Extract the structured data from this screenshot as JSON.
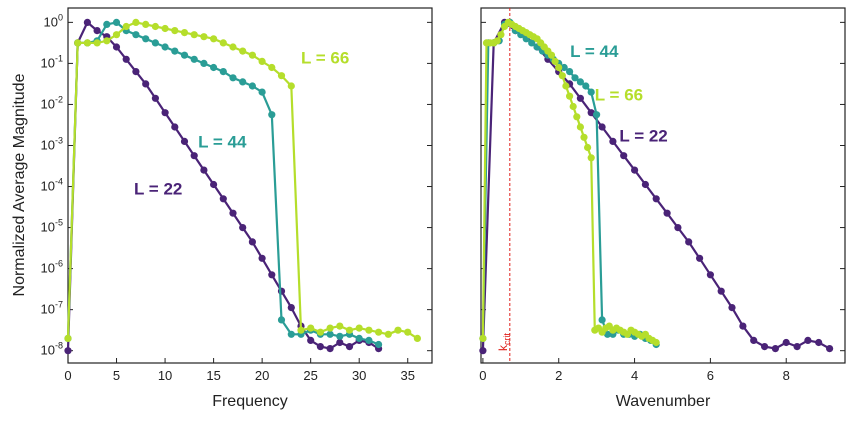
{
  "chart_data": [
    {
      "type": "line",
      "panel": "left",
      "xlabel": "Frequency",
      "ylabel": "Normalized Average Magnitude",
      "xlim": [
        0,
        37.5
      ],
      "ylim_log10": [
        -8.3,
        0.35
      ],
      "yscale": "log",
      "xticks": [
        0,
        5,
        10,
        15,
        20,
        25,
        30,
        35
      ],
      "xtick_labels": [
        "0",
        "5",
        "10",
        "15",
        "20",
        "25",
        "30",
        "35"
      ],
      "yticks_log10": [
        0,
        -1,
        -2,
        -3,
        -4,
        -5,
        -6,
        -7,
        -8
      ],
      "ytick_labels": [
        {
          "base": "10",
          "exp": "0"
        },
        {
          "base": "10",
          "exp": "-1"
        },
        {
          "base": "10",
          "exp": "-2"
        },
        {
          "base": "10",
          "exp": "-3"
        },
        {
          "base": "10",
          "exp": "-4"
        },
        {
          "base": "10",
          "exp": "-5"
        },
        {
          "base": "10",
          "exp": "-6"
        },
        {
          "base": "10",
          "exp": "-7"
        },
        {
          "base": "10",
          "exp": "-8"
        }
      ],
      "series": [
        {
          "name": "L = 22",
          "color": "#4a2377",
          "x": [
            0,
            1,
            2,
            3,
            4,
            5,
            6,
            7,
            8,
            9,
            10,
            11,
            12,
            13,
            14,
            15,
            16,
            17,
            18,
            19,
            20,
            21,
            22,
            23,
            24,
            25,
            26,
            27,
            28,
            29,
            30,
            31,
            32
          ],
          "log10y": [
            -8.0,
            -0.5,
            0.0,
            -0.2,
            -0.35,
            -0.6,
            -0.9,
            -1.2,
            -1.5,
            -1.85,
            -2.2,
            -2.55,
            -2.9,
            -3.25,
            -3.6,
            -3.95,
            -4.3,
            -4.65,
            -5.0,
            -5.35,
            -5.75,
            -6.15,
            -6.55,
            -6.95,
            -7.4,
            -7.75,
            -7.9,
            -7.95,
            -7.8,
            -7.9,
            -7.75,
            -7.8,
            -7.95
          ]
        },
        {
          "name": "L = 44",
          "color": "#2a9d96",
          "x": [
            0,
            1,
            2,
            3,
            4,
            5,
            6,
            7,
            8,
            9,
            10,
            11,
            12,
            13,
            14,
            15,
            16,
            17,
            18,
            19,
            20,
            21,
            22,
            23,
            24,
            25,
            26,
            27,
            28,
            29,
            30,
            31,
            32
          ],
          "log10y": [
            -7.7,
            -0.5,
            -0.5,
            -0.45,
            -0.05,
            0.0,
            -0.2,
            -0.3,
            -0.4,
            -0.5,
            -0.6,
            -0.7,
            -0.8,
            -0.9,
            -1.0,
            -1.1,
            -1.2,
            -1.35,
            -1.45,
            -1.55,
            -1.7,
            -2.25,
            -7.25,
            -7.6,
            -7.6,
            -7.5,
            -7.6,
            -7.6,
            -7.65,
            -7.6,
            -7.7,
            -7.75,
            -7.85
          ]
        },
        {
          "name": "L = 66",
          "color": "#b5de2b",
          "x": [
            0,
            1,
            2,
            3,
            4,
            5,
            6,
            7,
            8,
            9,
            10,
            11,
            12,
            13,
            14,
            15,
            16,
            17,
            18,
            19,
            20,
            21,
            22,
            23,
            24,
            25,
            26,
            27,
            28,
            29,
            30,
            31,
            32,
            33,
            34,
            35,
            36
          ],
          "log10y": [
            -7.7,
            -0.5,
            -0.5,
            -0.5,
            -0.45,
            -0.3,
            -0.1,
            0.0,
            -0.05,
            -0.1,
            -0.15,
            -0.2,
            -0.25,
            -0.3,
            -0.35,
            -0.4,
            -0.5,
            -0.6,
            -0.7,
            -0.8,
            -0.95,
            -1.1,
            -1.3,
            -1.55,
            -7.5,
            -7.45,
            -7.55,
            -7.45,
            -7.4,
            -7.5,
            -7.45,
            -7.5,
            -7.55,
            -7.6,
            -7.5,
            -7.55,
            -7.7
          ]
        }
      ],
      "labels": [
        {
          "text": "L = 66",
          "series": "L = 66",
          "at_x": 24.0,
          "at_log10y": -1.0
        },
        {
          "text": "L = 44",
          "series": "L = 44",
          "at_x": 13.4,
          "at_log10y": -3.05
        },
        {
          "text": "L = 22",
          "series": "L = 22",
          "at_x": 6.8,
          "at_log10y": -4.2
        }
      ]
    },
    {
      "type": "line",
      "panel": "right",
      "xlabel": "Wavenumber",
      "xlim": [
        -0.05,
        9.55
      ],
      "ylim_log10": [
        -8.3,
        0.35
      ],
      "yscale": "log",
      "xticks": [
        0,
        2,
        4,
        6,
        8
      ],
      "xtick_labels": [
        "0",
        "2",
        "4",
        "6",
        "8"
      ],
      "yticks_log10": [
        0,
        -1,
        -2,
        -3,
        -4,
        -5,
        -6,
        -7,
        -8
      ],
      "kcrit": {
        "x": 0.71,
        "label": "k",
        "sub": "crit",
        "color": "#e0201b"
      },
      "series": [
        {
          "name": "L = 22",
          "color": "#4a2377",
          "x": [
            0,
            0.286,
            0.571,
            0.857,
            1.143,
            1.429,
            1.714,
            2.0,
            2.286,
            2.571,
            2.857,
            3.143,
            3.429,
            3.714,
            4.0,
            4.286,
            4.571,
            4.857,
            5.143,
            5.429,
            5.714,
            6.0,
            6.286,
            6.571,
            6.857,
            7.143,
            7.429,
            7.714,
            8.0,
            8.286,
            8.571,
            8.857,
            9.143
          ],
          "log10y": [
            -8.0,
            -0.5,
            0.0,
            -0.2,
            -0.35,
            -0.6,
            -0.9,
            -1.2,
            -1.5,
            -1.85,
            -2.2,
            -2.55,
            -2.9,
            -3.25,
            -3.6,
            -3.95,
            -4.3,
            -4.65,
            -5.0,
            -5.35,
            -5.75,
            -6.15,
            -6.55,
            -6.95,
            -7.4,
            -7.75,
            -7.9,
            -7.95,
            -7.8,
            -7.9,
            -7.75,
            -7.8,
            -7.95
          ]
        },
        {
          "name": "L = 44",
          "color": "#2a9d96",
          "x": [
            0,
            0.143,
            0.286,
            0.429,
            0.571,
            0.714,
            0.857,
            1.0,
            1.143,
            1.286,
            1.429,
            1.571,
            1.714,
            1.857,
            2.0,
            2.143,
            2.286,
            2.429,
            2.571,
            2.714,
            2.857,
            3.0,
            3.143,
            3.286,
            3.429,
            3.571,
            3.714,
            3.857,
            4.0,
            4.143,
            4.286,
            4.429,
            4.571
          ],
          "log10y": [
            -7.7,
            -0.5,
            -0.5,
            -0.45,
            -0.05,
            0.0,
            -0.2,
            -0.3,
            -0.4,
            -0.5,
            -0.6,
            -0.7,
            -0.8,
            -0.9,
            -1.0,
            -1.1,
            -1.2,
            -1.35,
            -1.45,
            -1.55,
            -1.7,
            -2.25,
            -7.25,
            -7.6,
            -7.6,
            -7.5,
            -7.6,
            -7.6,
            -7.65,
            -7.6,
            -7.7,
            -7.75,
            -7.85
          ]
        },
        {
          "name": "L = 66",
          "color": "#b5de2b",
          "x": [
            0,
            0.095,
            0.19,
            0.286,
            0.381,
            0.476,
            0.571,
            0.667,
            0.762,
            0.857,
            0.952,
            1.048,
            1.143,
            1.238,
            1.333,
            1.429,
            1.524,
            1.619,
            1.714,
            1.81,
            1.905,
            2.0,
            2.095,
            2.19,
            2.286,
            2.381,
            2.476,
            2.571,
            2.667,
            2.762,
            2.857,
            2.952,
            3.048,
            3.143,
            3.238,
            3.333,
            3.429,
            3.524,
            3.619,
            3.714,
            3.81,
            3.905,
            4.0,
            4.095,
            4.19,
            4.286,
            4.381,
            4.476,
            4.571
          ],
          "log10y": [
            -7.7,
            -0.5,
            -0.5,
            -0.5,
            -0.45,
            -0.3,
            -0.1,
            0.0,
            -0.05,
            -0.1,
            -0.15,
            -0.2,
            -0.25,
            -0.3,
            -0.35,
            -0.4,
            -0.5,
            -0.6,
            -0.7,
            -0.8,
            -0.95,
            -1.1,
            -1.3,
            -1.55,
            -1.8,
            -2.05,
            -2.3,
            -2.55,
            -2.8,
            -3.05,
            -3.3,
            -7.5,
            -7.45,
            -7.55,
            -7.45,
            -7.4,
            -7.5,
            -7.45,
            -7.5,
            -7.55,
            -7.6,
            -7.5,
            -7.55,
            -7.6,
            -7.65,
            -7.6,
            -7.7,
            -7.75,
            -7.8
          ]
        }
      ],
      "labels": [
        {
          "text": "L = 44",
          "series": "L = 44",
          "at_x": 2.3,
          "at_log10y": -0.85
        },
        {
          "text": "L = 66",
          "series": "L = 66",
          "at_x": 2.95,
          "at_log10y": -1.9
        },
        {
          "text": "L = 22",
          "series": "L = 22",
          "at_x": 3.6,
          "at_log10y": -2.9
        }
      ]
    }
  ]
}
